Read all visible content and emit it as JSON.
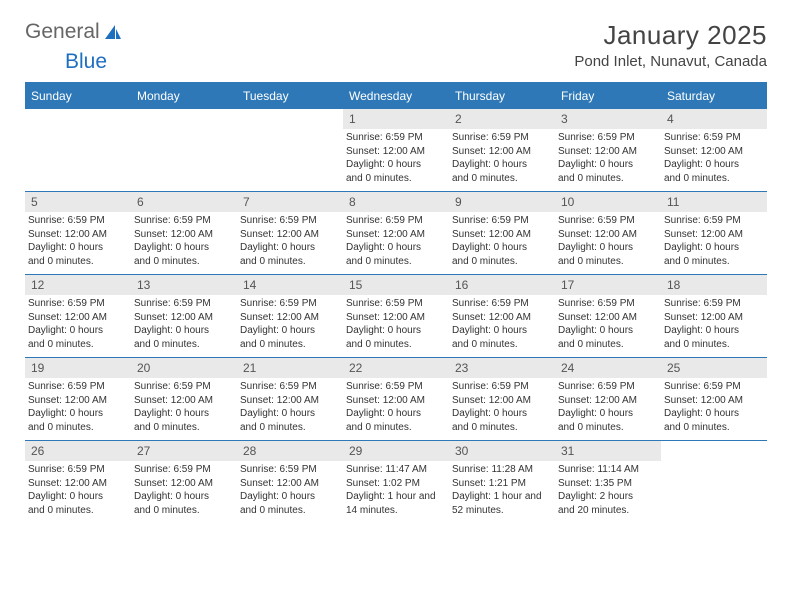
{
  "logo": {
    "text1": "General",
    "text2": "Blue"
  },
  "title": "January 2025",
  "location": "Pond Inlet, Nunavut, Canada",
  "colors": {
    "header_bg": "#2e78b7",
    "header_text": "#ffffff",
    "daynum_bg": "#e9e9e9",
    "border": "#2e78b7",
    "body_text": "#333333",
    "logo_blue": "#1e6fc0"
  },
  "daynames": [
    "Sunday",
    "Monday",
    "Tuesday",
    "Wednesday",
    "Thursday",
    "Friday",
    "Saturday"
  ],
  "weeks": [
    [
      {
        "empty": true
      },
      {
        "empty": true
      },
      {
        "empty": true
      },
      {
        "num": "1",
        "sunrise": "Sunrise: 6:59 PM",
        "sunset": "Sunset: 12:00 AM",
        "daylight1": "Daylight: 0 hours",
        "daylight2": "and 0 minutes."
      },
      {
        "num": "2",
        "sunrise": "Sunrise: 6:59 PM",
        "sunset": "Sunset: 12:00 AM",
        "daylight1": "Daylight: 0 hours",
        "daylight2": "and 0 minutes."
      },
      {
        "num": "3",
        "sunrise": "Sunrise: 6:59 PM",
        "sunset": "Sunset: 12:00 AM",
        "daylight1": "Daylight: 0 hours",
        "daylight2": "and 0 minutes."
      },
      {
        "num": "4",
        "sunrise": "Sunrise: 6:59 PM",
        "sunset": "Sunset: 12:00 AM",
        "daylight1": "Daylight: 0 hours",
        "daylight2": "and 0 minutes."
      }
    ],
    [
      {
        "num": "5",
        "sunrise": "Sunrise: 6:59 PM",
        "sunset": "Sunset: 12:00 AM",
        "daylight1": "Daylight: 0 hours",
        "daylight2": "and 0 minutes."
      },
      {
        "num": "6",
        "sunrise": "Sunrise: 6:59 PM",
        "sunset": "Sunset: 12:00 AM",
        "daylight1": "Daylight: 0 hours",
        "daylight2": "and 0 minutes."
      },
      {
        "num": "7",
        "sunrise": "Sunrise: 6:59 PM",
        "sunset": "Sunset: 12:00 AM",
        "daylight1": "Daylight: 0 hours",
        "daylight2": "and 0 minutes."
      },
      {
        "num": "8",
        "sunrise": "Sunrise: 6:59 PM",
        "sunset": "Sunset: 12:00 AM",
        "daylight1": "Daylight: 0 hours",
        "daylight2": "and 0 minutes."
      },
      {
        "num": "9",
        "sunrise": "Sunrise: 6:59 PM",
        "sunset": "Sunset: 12:00 AM",
        "daylight1": "Daylight: 0 hours",
        "daylight2": "and 0 minutes."
      },
      {
        "num": "10",
        "sunrise": "Sunrise: 6:59 PM",
        "sunset": "Sunset: 12:00 AM",
        "daylight1": "Daylight: 0 hours",
        "daylight2": "and 0 minutes."
      },
      {
        "num": "11",
        "sunrise": "Sunrise: 6:59 PM",
        "sunset": "Sunset: 12:00 AM",
        "daylight1": "Daylight: 0 hours",
        "daylight2": "and 0 minutes."
      }
    ],
    [
      {
        "num": "12",
        "sunrise": "Sunrise: 6:59 PM",
        "sunset": "Sunset: 12:00 AM",
        "daylight1": "Daylight: 0 hours",
        "daylight2": "and 0 minutes."
      },
      {
        "num": "13",
        "sunrise": "Sunrise: 6:59 PM",
        "sunset": "Sunset: 12:00 AM",
        "daylight1": "Daylight: 0 hours",
        "daylight2": "and 0 minutes."
      },
      {
        "num": "14",
        "sunrise": "Sunrise: 6:59 PM",
        "sunset": "Sunset: 12:00 AM",
        "daylight1": "Daylight: 0 hours",
        "daylight2": "and 0 minutes."
      },
      {
        "num": "15",
        "sunrise": "Sunrise: 6:59 PM",
        "sunset": "Sunset: 12:00 AM",
        "daylight1": "Daylight: 0 hours",
        "daylight2": "and 0 minutes."
      },
      {
        "num": "16",
        "sunrise": "Sunrise: 6:59 PM",
        "sunset": "Sunset: 12:00 AM",
        "daylight1": "Daylight: 0 hours",
        "daylight2": "and 0 minutes."
      },
      {
        "num": "17",
        "sunrise": "Sunrise: 6:59 PM",
        "sunset": "Sunset: 12:00 AM",
        "daylight1": "Daylight: 0 hours",
        "daylight2": "and 0 minutes."
      },
      {
        "num": "18",
        "sunrise": "Sunrise: 6:59 PM",
        "sunset": "Sunset: 12:00 AM",
        "daylight1": "Daylight: 0 hours",
        "daylight2": "and 0 minutes."
      }
    ],
    [
      {
        "num": "19",
        "sunrise": "Sunrise: 6:59 PM",
        "sunset": "Sunset: 12:00 AM",
        "daylight1": "Daylight: 0 hours",
        "daylight2": "and 0 minutes."
      },
      {
        "num": "20",
        "sunrise": "Sunrise: 6:59 PM",
        "sunset": "Sunset: 12:00 AM",
        "daylight1": "Daylight: 0 hours",
        "daylight2": "and 0 minutes."
      },
      {
        "num": "21",
        "sunrise": "Sunrise: 6:59 PM",
        "sunset": "Sunset: 12:00 AM",
        "daylight1": "Daylight: 0 hours",
        "daylight2": "and 0 minutes."
      },
      {
        "num": "22",
        "sunrise": "Sunrise: 6:59 PM",
        "sunset": "Sunset: 12:00 AM",
        "daylight1": "Daylight: 0 hours",
        "daylight2": "and 0 minutes."
      },
      {
        "num": "23",
        "sunrise": "Sunrise: 6:59 PM",
        "sunset": "Sunset: 12:00 AM",
        "daylight1": "Daylight: 0 hours",
        "daylight2": "and 0 minutes."
      },
      {
        "num": "24",
        "sunrise": "Sunrise: 6:59 PM",
        "sunset": "Sunset: 12:00 AM",
        "daylight1": "Daylight: 0 hours",
        "daylight2": "and 0 minutes."
      },
      {
        "num": "25",
        "sunrise": "Sunrise: 6:59 PM",
        "sunset": "Sunset: 12:00 AM",
        "daylight1": "Daylight: 0 hours",
        "daylight2": "and 0 minutes."
      }
    ],
    [
      {
        "num": "26",
        "sunrise": "Sunrise: 6:59 PM",
        "sunset": "Sunset: 12:00 AM",
        "daylight1": "Daylight: 0 hours",
        "daylight2": "and 0 minutes."
      },
      {
        "num": "27",
        "sunrise": "Sunrise: 6:59 PM",
        "sunset": "Sunset: 12:00 AM",
        "daylight1": "Daylight: 0 hours",
        "daylight2": "and 0 minutes."
      },
      {
        "num": "28",
        "sunrise": "Sunrise: 6:59 PM",
        "sunset": "Sunset: 12:00 AM",
        "daylight1": "Daylight: 0 hours",
        "daylight2": "and 0 minutes."
      },
      {
        "num": "29",
        "sunrise": "Sunrise: 11:47 AM",
        "sunset": "Sunset: 1:02 PM",
        "daylight1": "Daylight: 1 hour and",
        "daylight2": "14 minutes."
      },
      {
        "num": "30",
        "sunrise": "Sunrise: 11:28 AM",
        "sunset": "Sunset: 1:21 PM",
        "daylight1": "Daylight: 1 hour and",
        "daylight2": "52 minutes."
      },
      {
        "num": "31",
        "sunrise": "Sunrise: 11:14 AM",
        "sunset": "Sunset: 1:35 PM",
        "daylight1": "Daylight: 2 hours",
        "daylight2": "and 20 minutes."
      },
      {
        "empty": true
      }
    ]
  ]
}
